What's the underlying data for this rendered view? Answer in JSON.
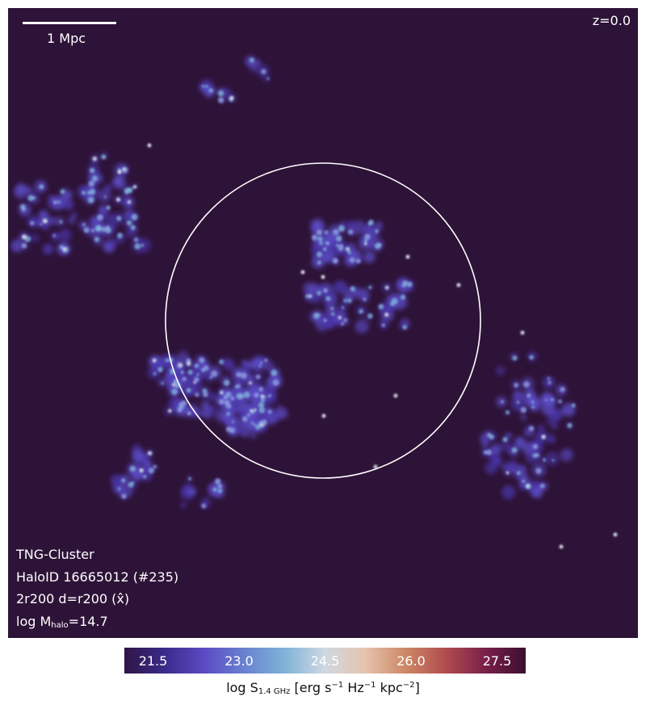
{
  "scalebar": {
    "label": "1 Mpc"
  },
  "redshift": "z=0.0",
  "info": {
    "simulation": "TNG-Cluster",
    "halo_id": "HaloID 16665012 (#235)",
    "projection": "2r200 d=r200 (x̂)",
    "mass_prefix": "log M",
    "mass_sub": "halo",
    "mass_value": "=14.7"
  },
  "colorbar": {
    "ticks": [
      "21.5",
      "23.0",
      "24.5",
      "26.0",
      "27.5"
    ],
    "tick_values": [
      21.5,
      23.0,
      24.5,
      26.0,
      27.5
    ],
    "range": [
      21.0,
      28.0
    ],
    "label": {
      "prefix": "log S",
      "sub": "1.4 GHz",
      "units_a": " [erg s",
      "sup1": "−1",
      "units_b": " Hz",
      "sup2": "−1",
      "units_c": " kpc",
      "sup3": "−2",
      "units_d": "]"
    },
    "colors": [
      "#2f1545",
      "#5b4bc4",
      "#7fb3d8",
      "#cfd8e2",
      "#cc8866",
      "#7a1f4a",
      "#3b0f2e"
    ]
  },
  "background_color": "#2e1338",
  "circle_color": "#ffffff"
}
